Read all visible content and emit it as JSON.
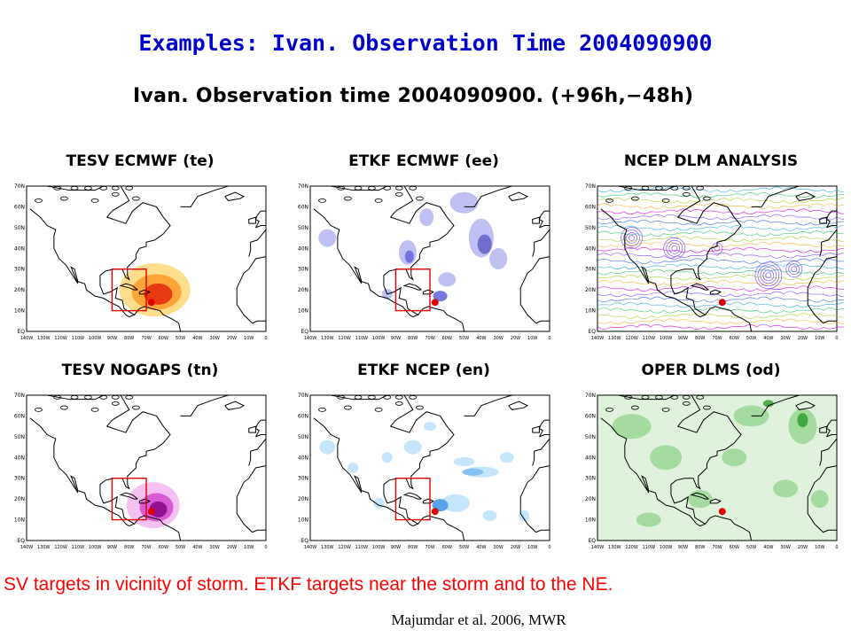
{
  "slide": {
    "title": "Examples: Ivan. Observation Time 2004090900",
    "figure_title": "Ivan. Observation time 2004090900. (+96h,−48h)",
    "caption": "SV targets in vicinity of storm.  ETKF targets near the storm and to the NE.",
    "citation": "Majumdar et al. 2006, MWR"
  },
  "map_axes": {
    "lat_labels": [
      "70N",
      "60N",
      "50N",
      "40N",
      "30N",
      "20N",
      "10N",
      "EQ"
    ],
    "lon_labels": [
      "140W",
      "130W",
      "120W",
      "110W",
      "100W",
      "90W",
      "80W",
      "70W",
      "60W",
      "50W",
      "40W",
      "30W",
      "20W",
      "10W",
      "0"
    ]
  },
  "panels": [
    {
      "id": "te",
      "title": "TESV ECMWF (te)",
      "style": "sv",
      "color": "#f08000"
    },
    {
      "id": "ee",
      "title": "ETKF ECMWF (ee)",
      "style": "etkf-purple",
      "color": "#6a6ad8"
    },
    {
      "id": "ncep",
      "title": "NCEP DLM ANALYSIS",
      "style": "streamlines",
      "color": "#3060e0"
    },
    {
      "id": "tn",
      "title": "TESV NOGAPS (tn)",
      "style": "sv-magenta",
      "color": "#c000c0"
    },
    {
      "id": "en",
      "title": "ETKF NCEP (en)",
      "style": "etkf-blue",
      "color": "#5aa8ee"
    },
    {
      "id": "od",
      "title": "OPER DLMS (od)",
      "style": "green",
      "color": "#33aa33"
    }
  ]
}
